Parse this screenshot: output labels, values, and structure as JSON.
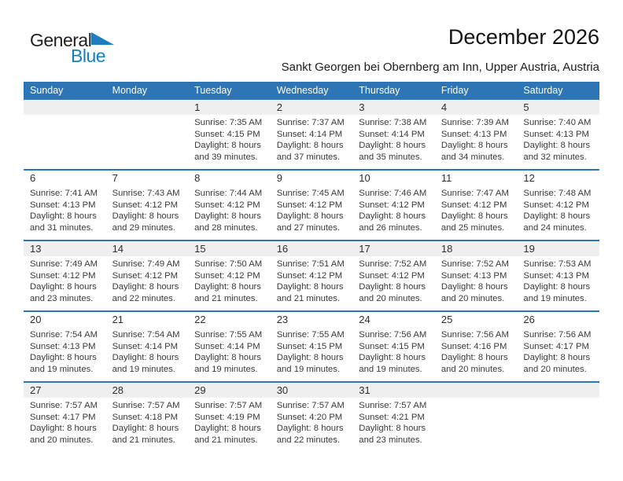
{
  "logo": {
    "general": "General",
    "blue": "Blue"
  },
  "header": {
    "title": "December 2026",
    "subtitle": "Sankt Georgen bei Obernberg am Inn, Upper Austria, Austria"
  },
  "colors": {
    "accent": "#2e75b6",
    "band": "#efefef",
    "logo_blue": "#1080c6"
  },
  "weekdays": [
    "Sunday",
    "Monday",
    "Tuesday",
    "Wednesday",
    "Thursday",
    "Friday",
    "Saturday"
  ],
  "labels": {
    "sunrise": "Sunrise:",
    "sunset": "Sunset:",
    "daylight": "Daylight:"
  },
  "weeks": [
    [
      null,
      null,
      {
        "day": "1",
        "sunrise": "7:35 AM",
        "sunset": "4:15 PM",
        "daylight_l1": "8 hours",
        "daylight_l2": "and 39 minutes."
      },
      {
        "day": "2",
        "sunrise": "7:37 AM",
        "sunset": "4:14 PM",
        "daylight_l1": "8 hours",
        "daylight_l2": "and 37 minutes."
      },
      {
        "day": "3",
        "sunrise": "7:38 AM",
        "sunset": "4:14 PM",
        "daylight_l1": "8 hours",
        "daylight_l2": "and 35 minutes."
      },
      {
        "day": "4",
        "sunrise": "7:39 AM",
        "sunset": "4:13 PM",
        "daylight_l1": "8 hours",
        "daylight_l2": "and 34 minutes."
      },
      {
        "day": "5",
        "sunrise": "7:40 AM",
        "sunset": "4:13 PM",
        "daylight_l1": "8 hours",
        "daylight_l2": "and 32 minutes."
      }
    ],
    [
      {
        "day": "6",
        "sunrise": "7:41 AM",
        "sunset": "4:13 PM",
        "daylight_l1": "8 hours",
        "daylight_l2": "and 31 minutes."
      },
      {
        "day": "7",
        "sunrise": "7:43 AM",
        "sunset": "4:12 PM",
        "daylight_l1": "8 hours",
        "daylight_l2": "and 29 minutes."
      },
      {
        "day": "8",
        "sunrise": "7:44 AM",
        "sunset": "4:12 PM",
        "daylight_l1": "8 hours",
        "daylight_l2": "and 28 minutes."
      },
      {
        "day": "9",
        "sunrise": "7:45 AM",
        "sunset": "4:12 PM",
        "daylight_l1": "8 hours",
        "daylight_l2": "and 27 minutes."
      },
      {
        "day": "10",
        "sunrise": "7:46 AM",
        "sunset": "4:12 PM",
        "daylight_l1": "8 hours",
        "daylight_l2": "and 26 minutes."
      },
      {
        "day": "11",
        "sunrise": "7:47 AM",
        "sunset": "4:12 PM",
        "daylight_l1": "8 hours",
        "daylight_l2": "and 25 minutes."
      },
      {
        "day": "12",
        "sunrise": "7:48 AM",
        "sunset": "4:12 PM",
        "daylight_l1": "8 hours",
        "daylight_l2": "and 24 minutes."
      }
    ],
    [
      {
        "day": "13",
        "sunrise": "7:49 AM",
        "sunset": "4:12 PM",
        "daylight_l1": "8 hours",
        "daylight_l2": "and 23 minutes."
      },
      {
        "day": "14",
        "sunrise": "7:49 AM",
        "sunset": "4:12 PM",
        "daylight_l1": "8 hours",
        "daylight_l2": "and 22 minutes."
      },
      {
        "day": "15",
        "sunrise": "7:50 AM",
        "sunset": "4:12 PM",
        "daylight_l1": "8 hours",
        "daylight_l2": "and 21 minutes."
      },
      {
        "day": "16",
        "sunrise": "7:51 AM",
        "sunset": "4:12 PM",
        "daylight_l1": "8 hours",
        "daylight_l2": "and 21 minutes."
      },
      {
        "day": "17",
        "sunrise": "7:52 AM",
        "sunset": "4:12 PM",
        "daylight_l1": "8 hours",
        "daylight_l2": "and 20 minutes."
      },
      {
        "day": "18",
        "sunrise": "7:52 AM",
        "sunset": "4:13 PM",
        "daylight_l1": "8 hours",
        "daylight_l2": "and 20 minutes."
      },
      {
        "day": "19",
        "sunrise": "7:53 AM",
        "sunset": "4:13 PM",
        "daylight_l1": "8 hours",
        "daylight_l2": "and 19 minutes."
      }
    ],
    [
      {
        "day": "20",
        "sunrise": "7:54 AM",
        "sunset": "4:13 PM",
        "daylight_l1": "8 hours",
        "daylight_l2": "and 19 minutes."
      },
      {
        "day": "21",
        "sunrise": "7:54 AM",
        "sunset": "4:14 PM",
        "daylight_l1": "8 hours",
        "daylight_l2": "and 19 minutes."
      },
      {
        "day": "22",
        "sunrise": "7:55 AM",
        "sunset": "4:14 PM",
        "daylight_l1": "8 hours",
        "daylight_l2": "and 19 minutes."
      },
      {
        "day": "23",
        "sunrise": "7:55 AM",
        "sunset": "4:15 PM",
        "daylight_l1": "8 hours",
        "daylight_l2": "and 19 minutes."
      },
      {
        "day": "24",
        "sunrise": "7:56 AM",
        "sunset": "4:15 PM",
        "daylight_l1": "8 hours",
        "daylight_l2": "and 19 minutes."
      },
      {
        "day": "25",
        "sunrise": "7:56 AM",
        "sunset": "4:16 PM",
        "daylight_l1": "8 hours",
        "daylight_l2": "and 20 minutes."
      },
      {
        "day": "26",
        "sunrise": "7:56 AM",
        "sunset": "4:17 PM",
        "daylight_l1": "8 hours",
        "daylight_l2": "and 20 minutes."
      }
    ],
    [
      {
        "day": "27",
        "sunrise": "7:57 AM",
        "sunset": "4:17 PM",
        "daylight_l1": "8 hours",
        "daylight_l2": "and 20 minutes."
      },
      {
        "day": "28",
        "sunrise": "7:57 AM",
        "sunset": "4:18 PM",
        "daylight_l1": "8 hours",
        "daylight_l2": "and 21 minutes."
      },
      {
        "day": "29",
        "sunrise": "7:57 AM",
        "sunset": "4:19 PM",
        "daylight_l1": "8 hours",
        "daylight_l2": "and 21 minutes."
      },
      {
        "day": "30",
        "sunrise": "7:57 AM",
        "sunset": "4:20 PM",
        "daylight_l1": "8 hours",
        "daylight_l2": "and 22 minutes."
      },
      {
        "day": "31",
        "sunrise": "7:57 AM",
        "sunset": "4:21 PM",
        "daylight_l1": "8 hours",
        "daylight_l2": "and 23 minutes."
      },
      null,
      null
    ]
  ]
}
